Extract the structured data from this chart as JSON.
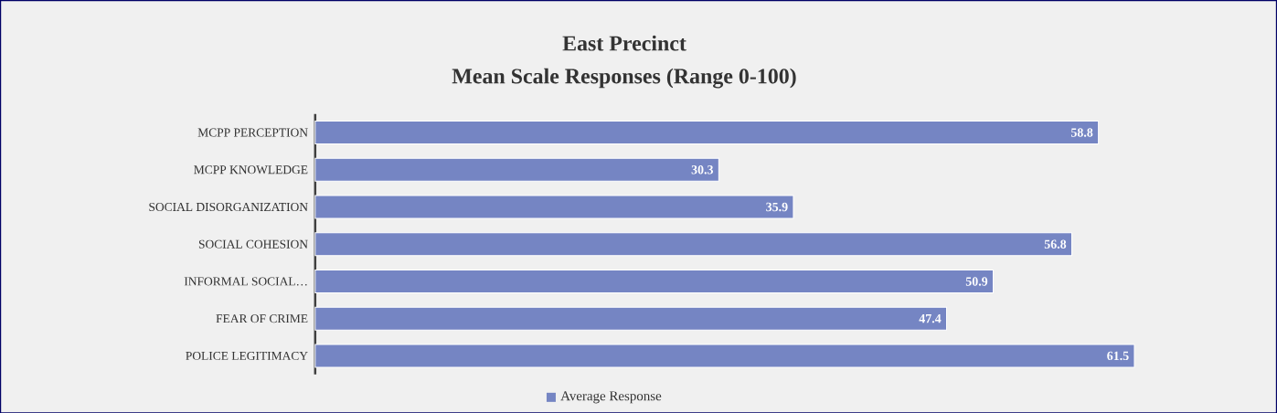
{
  "chart_data": {
    "type": "bar",
    "orientation": "horizontal",
    "title": "East Precinct\nMean Scale Responses (Range 0-100)",
    "categories": [
      "MCPP PERCEPTION",
      "MCPP KNOWLEDGE",
      "SOCIAL DISORGANIZATION",
      "SOCIAL COHESION",
      "INFORMAL SOCIAL…",
      "FEAR OF CRIME",
      "POLICE LEGITIMACY"
    ],
    "series": [
      {
        "name": "Average Response",
        "color": "#7585c3",
        "values": [
          58.8,
          30.3,
          35.9,
          56.8,
          50.9,
          47.4,
          61.5
        ]
      }
    ],
    "tick_labels": "y",
    "legend": "bottom",
    "data_labels": true
  }
}
